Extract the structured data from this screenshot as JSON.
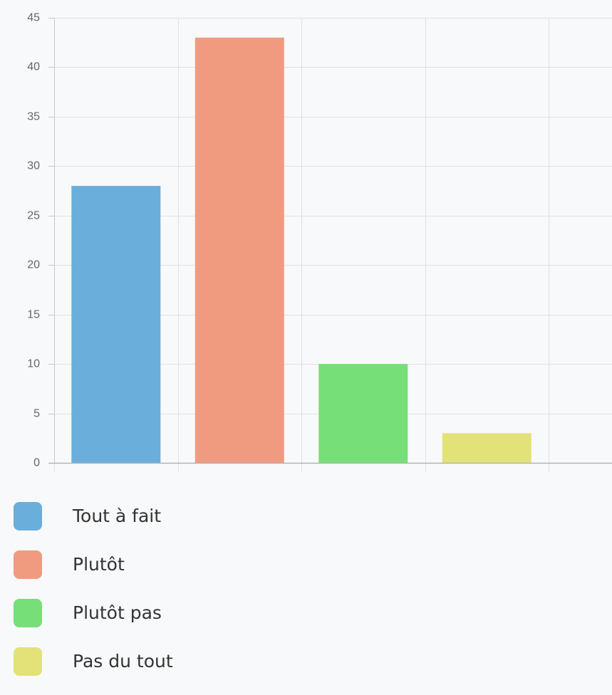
{
  "chart_data": {
    "type": "bar",
    "categories": [
      "Tout à fait",
      "Plutôt",
      "Plutôt pas",
      "Pas du tout"
    ],
    "values": [
      28,
      43,
      10,
      3
    ],
    "colors": [
      "#6aaedb",
      "#f09b80",
      "#76df78",
      "#e2e278"
    ],
    "title": "",
    "xlabel": "",
    "ylabel": "",
    "ylim": [
      0,
      45
    ],
    "yticks": [
      0,
      5,
      10,
      15,
      20,
      25,
      30,
      35,
      40,
      45
    ],
    "grid": true,
    "legend_position": "bottom"
  }
}
